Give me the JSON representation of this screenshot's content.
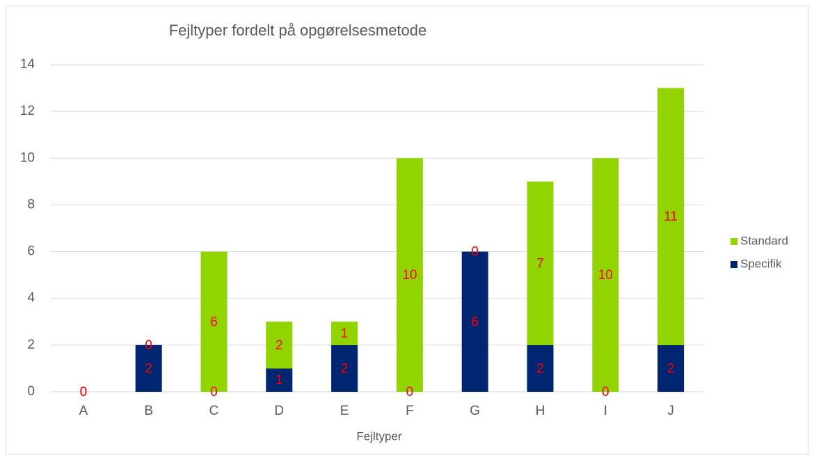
{
  "chart_data": {
    "type": "stacked_bar",
    "title": "Fejltyper fordelt på opgørelsesmetode",
    "x_label": "Fejltyper",
    "categories": [
      "A",
      "B",
      "C",
      "D",
      "E",
      "F",
      "G",
      "H",
      "I",
      "J"
    ],
    "series": [
      {
        "name": "Specifik",
        "color": "#002672",
        "values": [
          0,
          2,
          0,
          1,
          2,
          0,
          6,
          2,
          0,
          2
        ]
      },
      {
        "name": "Standard",
        "color": "#92d400",
        "values": [
          0,
          0,
          6,
          2,
          1,
          10,
          0,
          7,
          10,
          11
        ]
      }
    ],
    "ylim": [
      0,
      14
    ],
    "yticks": [
      0,
      2,
      4,
      6,
      8,
      10,
      12,
      14
    ],
    "grid": true,
    "legend": "right",
    "label_color": "#ff0000"
  }
}
